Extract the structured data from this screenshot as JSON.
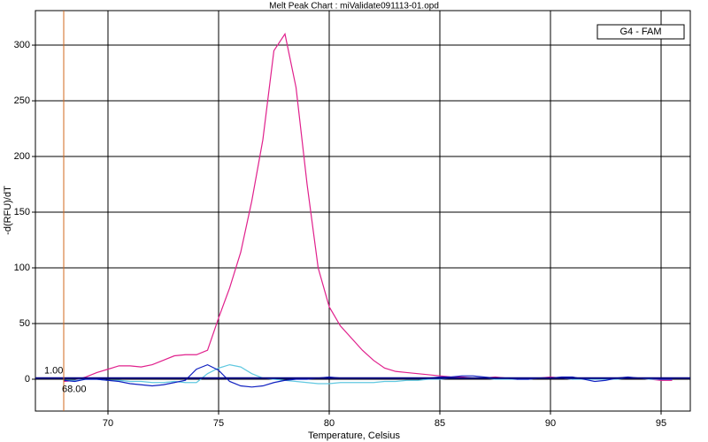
{
  "chart_data": {
    "type": "line",
    "title": "Melt Peak Chart : miValidate091113-01.opd",
    "xlabel": "Temperature, Celsius",
    "ylabel": "-d(RFU)/dT",
    "legend_label": "G4 - FAM",
    "legend_position": "upper right",
    "grid": true,
    "xlim": [
      66.72,
      96.32
    ],
    "ylim": [
      -28.6,
      331
    ],
    "xticks": [
      70,
      75,
      80,
      85,
      90,
      95
    ],
    "yticks": [
      0,
      50,
      100,
      150,
      200,
      250,
      300
    ],
    "threshold": {
      "value": 1,
      "label": "1.00",
      "color": "#000080"
    },
    "marker": {
      "value": 68,
      "label": "68.00",
      "color": "#d2691e"
    },
    "x": [
      68,
      68.5,
      69,
      69.5,
      70,
      70.5,
      71,
      71.5,
      72,
      72.5,
      73,
      73.5,
      74,
      74.5,
      75,
      75.5,
      76,
      76.5,
      77,
      77.5,
      78,
      78.5,
      79,
      79.5,
      80,
      80.5,
      81,
      81.5,
      82,
      82.5,
      83,
      83.5,
      84,
      84.5,
      85,
      85.5,
      86,
      86.5,
      87,
      87.5,
      88,
      88.5,
      89,
      89.5,
      90,
      90.5,
      91,
      91.5,
      92,
      92.5,
      93,
      93.5,
      94,
      94.5,
      95,
      95.5
    ],
    "series": [
      {
        "color": "#e0208c",
        "values": [
          -2,
          -1,
          2,
          6,
          9,
          12,
          12,
          11,
          13,
          17,
          21,
          22,
          22,
          26,
          55,
          82,
          114,
          160,
          215,
          295,
          310,
          262,
          175,
          100,
          65,
          48,
          37,
          26,
          17,
          10,
          7,
          6,
          5,
          4,
          3,
          2,
          2,
          1,
          1,
          2,
          1,
          0,
          1,
          1,
          2,
          1,
          0,
          1,
          1,
          0,
          1,
          1,
          1,
          0,
          -1,
          -1
        ]
      },
      {
        "color": "#60c8e0",
        "values": [
          -1,
          -1,
          0,
          0,
          -1,
          -1,
          -2,
          -2,
          -3,
          -3,
          -2,
          -3,
          -3,
          5,
          10,
          13,
          11,
          5,
          1,
          0,
          -1,
          -2,
          -3,
          -4,
          -4,
          -3,
          -3,
          -3,
          -3,
          -2,
          -2,
          -1,
          -1,
          0,
          0,
          1,
          1,
          1,
          1,
          0,
          0,
          0,
          0,
          1,
          1,
          1,
          0,
          0,
          0,
          0,
          0,
          1,
          1,
          0,
          0,
          0
        ]
      },
      {
        "color": "#1020c0",
        "values": [
          -1,
          -2,
          0,
          0,
          -1,
          -2,
          -4,
          -5,
          -6,
          -5,
          -3,
          -1,
          9,
          13,
          8,
          -2,
          -6,
          -7,
          -6,
          -3,
          -1,
          0,
          0,
          1,
          2,
          1,
          1,
          1,
          1,
          1,
          1,
          1,
          1,
          1,
          2,
          2,
          3,
          3,
          2,
          1,
          1,
          0,
          0,
          1,
          1,
          2,
          2,
          0,
          -2,
          -1,
          1,
          2,
          1,
          1,
          0,
          0
        ]
      }
    ]
  }
}
